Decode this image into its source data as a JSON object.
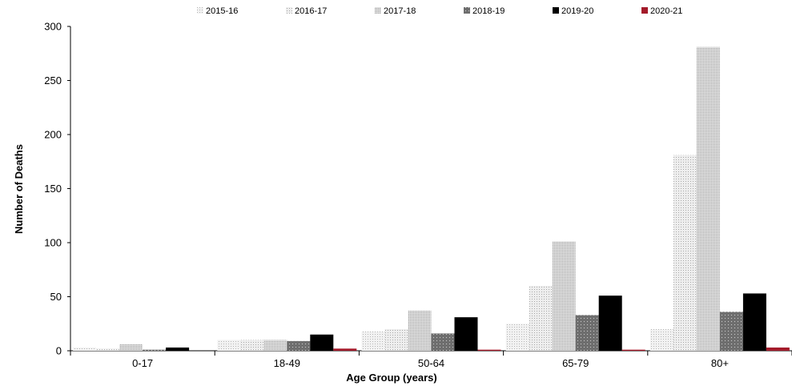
{
  "chart_data": {
    "type": "bar",
    "title": "",
    "xlabel": "Age Group (years)",
    "ylabel": "Number of Deaths",
    "ylim": [
      0,
      300
    ],
    "yticks": [
      0,
      50,
      100,
      150,
      200,
      250,
      300
    ],
    "grid": false,
    "legend_position": "top",
    "categories": [
      "0-17",
      "18-49",
      "50-64",
      "65-79",
      "80+"
    ],
    "series": [
      {
        "name": "2015-16",
        "values": [
          3,
          10,
          18,
          25,
          20
        ],
        "color": "#e4e4e4",
        "pattern": "fine-dots"
      },
      {
        "name": "2016-17",
        "values": [
          2,
          10,
          20,
          60,
          181
        ],
        "color": "#e0e0e0",
        "pattern": "light-dots"
      },
      {
        "name": "2017-18",
        "values": [
          6,
          10,
          37,
          101,
          281
        ],
        "color": "#cfcfcf",
        "pattern": "dense-dots"
      },
      {
        "name": "2018-19",
        "values": [
          1,
          9,
          16,
          33,
          36
        ],
        "color": "#7b7b7b",
        "pattern": "dark-dots"
      },
      {
        "name": "2019-20",
        "values": [
          3,
          15,
          31,
          51,
          53
        ],
        "color": "#000000",
        "pattern": "solid"
      },
      {
        "name": "2020-21",
        "values": [
          0,
          2,
          1,
          1,
          3
        ],
        "color": "#a31a2a",
        "pattern": "solid"
      }
    ]
  }
}
